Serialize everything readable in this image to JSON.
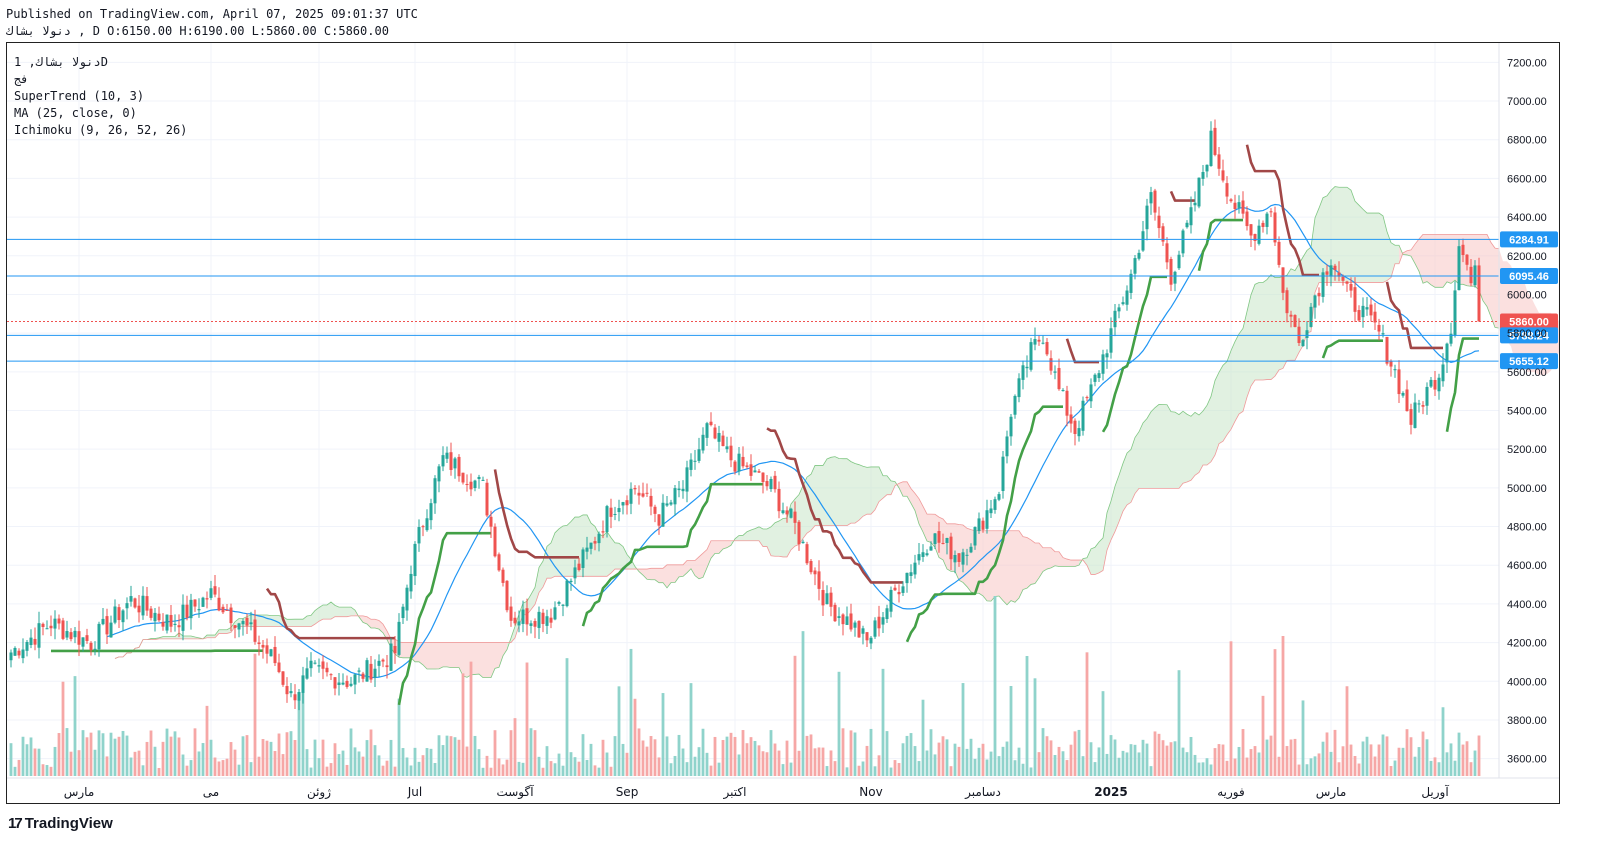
{
  "header": {
    "published": "Published on TradingView.com, April 07, 2025 09:01:37 UTC",
    "symbol_line": "دنولا  بشاك , D O:6150.00 H:6190.00 L:5860.00 C:5860.00"
  },
  "legend": {
    "symbol": "دنولا بشاك, 1D",
    "exchange": "فج",
    "supertrend": "SuperTrend (10, 3)",
    "ma": "MA (25, close, 0)",
    "ichimoku": "Ichimoku (9, 26, 52, 26)"
  },
  "logo": {
    "mark": "17",
    "text": "TradingView"
  },
  "colors": {
    "up": "#26a69a",
    "down": "#ef5350",
    "vol_up": "#8fd3cb",
    "vol_down": "#f6a7a6",
    "st_up": "#43a047",
    "st_down": "#a14747",
    "ma": "#2196f3",
    "hline": "#2196f3",
    "cloud_up": "#c8e6c9",
    "cloud_down": "#f8c7c5"
  },
  "chart_data": {
    "type": "candlestick",
    "price_ylim": [
      3500,
      7300
    ],
    "y_ticks": [
      "7200.00",
      "7000.00",
      "6800.00",
      "6600.00",
      "6400.00",
      "6200.00",
      "6000.00",
      "5800.00",
      "5600.00",
      "5400.00",
      "5200.00",
      "5000.00",
      "4800.00",
      "4600.00",
      "4400.00",
      "4200.00",
      "4000.00",
      "3800.00",
      "3600.00"
    ],
    "x_labels": [
      {
        "text": "مارس",
        "bar": 17
      },
      {
        "text": "می",
        "bar": 50
      },
      {
        "text": "ژوئن",
        "bar": 77
      },
      {
        "text": "Jul",
        "bar": 101
      },
      {
        "text": "آگوست",
        "bar": 126
      },
      {
        "text": "Sep",
        "bar": 154
      },
      {
        "text": "اکتبر",
        "bar": 181
      },
      {
        "text": "Nov",
        "bar": 215
      },
      {
        "text": "دسامبر",
        "bar": 243
      },
      {
        "text": "2025",
        "bar": 275
      },
      {
        "text": "فوریه",
        "bar": 305
      },
      {
        "text": "مارس",
        "bar": 330
      },
      {
        "text": "آوریل",
        "bar": 356
      }
    ],
    "horizontal_lines": [
      {
        "label": "6284.91",
        "value": 6284.91,
        "style": "blue-box"
      },
      {
        "label": "6095.46",
        "value": 6095.46,
        "style": "blue-box"
      },
      {
        "label": "5860.00",
        "value": 5860.0,
        "style": "red-box"
      },
      {
        "label": "5788.24",
        "value": 5788.24,
        "style": "blue-box"
      },
      {
        "label": "5655.12",
        "value": 5655.12,
        "style": "blue-box"
      }
    ],
    "price_anchors": [
      [
        0,
        4150
      ],
      [
        10,
        4300
      ],
      [
        20,
        4200
      ],
      [
        30,
        4420
      ],
      [
        40,
        4300
      ],
      [
        50,
        4450
      ],
      [
        60,
        4250
      ],
      [
        66,
        4100
      ],
      [
        70,
        3920
      ],
      [
        75,
        4050
      ],
      [
        85,
        4000
      ],
      [
        96,
        4150
      ],
      [
        100,
        4600
      ],
      [
        104,
        4900
      ],
      [
        108,
        5150
      ],
      [
        112,
        5100
      ],
      [
        118,
        5000
      ],
      [
        122,
        4600
      ],
      [
        125,
        4330
      ],
      [
        135,
        4350
      ],
      [
        145,
        4700
      ],
      [
        150,
        4900
      ],
      [
        156,
        5000
      ],
      [
        162,
        4850
      ],
      [
        168,
        5000
      ],
      [
        174,
        5300
      ],
      [
        180,
        5150
      ],
      [
        190,
        5000
      ],
      [
        196,
        4800
      ],
      [
        200,
        4600
      ],
      [
        204,
        4400
      ],
      [
        210,
        4300
      ],
      [
        214,
        4200
      ],
      [
        222,
        4500
      ],
      [
        230,
        4750
      ],
      [
        237,
        4650
      ],
      [
        242,
        4800
      ],
      [
        247,
        5000
      ],
      [
        250,
        5400
      ],
      [
        255,
        5700
      ],
      [
        258,
        5800
      ],
      [
        262,
        5500
      ],
      [
        266,
        5300
      ],
      [
        270,
        5500
      ],
      [
        275,
        5800
      ],
      [
        280,
        6100
      ],
      [
        285,
        6500
      ],
      [
        290,
        6100
      ],
      [
        295,
        6400
      ],
      [
        300,
        6800
      ],
      [
        305,
        6500
      ],
      [
        310,
        6300
      ],
      [
        315,
        6450
      ],
      [
        318,
        6000
      ],
      [
        322,
        5750
      ],
      [
        326,
        6000
      ],
      [
        330,
        6200
      ],
      [
        334,
        6000
      ],
      [
        338,
        5900
      ],
      [
        342,
        5800
      ],
      [
        346,
        5600
      ],
      [
        350,
        5350
      ],
      [
        354,
        5500
      ],
      [
        357,
        5600
      ],
      [
        360,
        5850
      ],
      [
        362,
        6250
      ],
      [
        364,
        6150
      ],
      [
        366,
        5860
      ]
    ],
    "volume_note": "daily volume bars, colored by candle direction",
    "last_close": 5860
  }
}
